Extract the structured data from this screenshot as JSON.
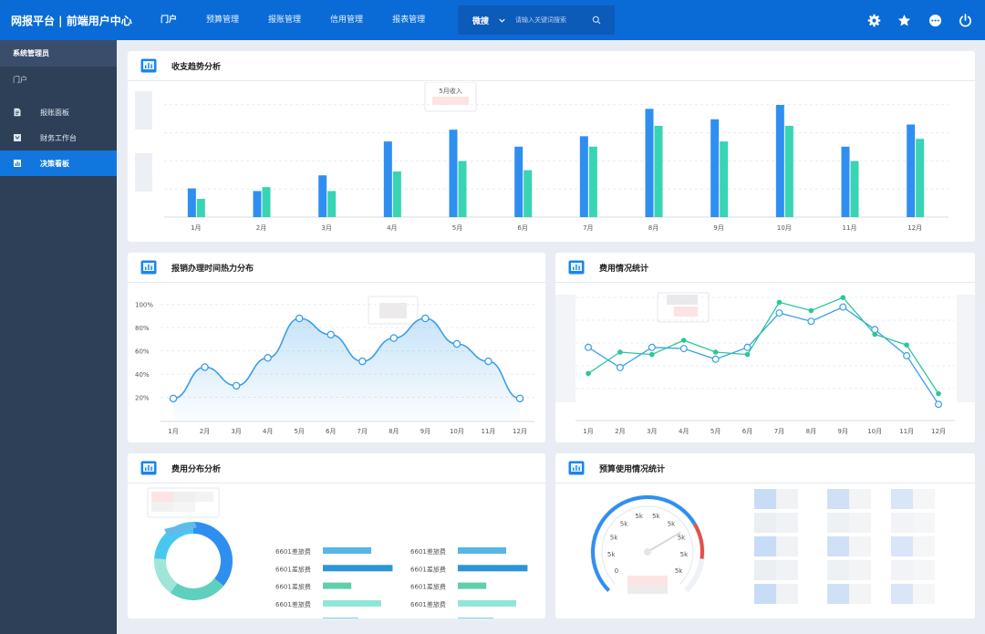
{
  "header": {
    "brand": "网报平台 | 前端用户中心",
    "nav": [
      "门户",
      "预算管理",
      "报账管理",
      "信用管理",
      "报表管理"
    ],
    "search": {
      "type": "微搜",
      "placeholder": "请输入关键词搜索"
    },
    "icons": [
      "gear-icon",
      "star-icon",
      "more-icon",
      "power-icon"
    ]
  },
  "sidebar": {
    "role": "系统管理员",
    "portal": "门户",
    "items": [
      {
        "label": "报账面板",
        "icon": "document-icon",
        "active": false
      },
      {
        "label": "财务工作台",
        "icon": "inbox-icon",
        "active": false
      },
      {
        "label": "决策看板",
        "icon": "chart-icon",
        "active": true
      }
    ]
  },
  "panels": {
    "trend": {
      "title": "收支趋势分析",
      "tooltip": "5月收入"
    },
    "heat": {
      "title": "报销办理时间热力分布"
    },
    "expense": {
      "title": "费用情况统计"
    },
    "dist": {
      "title": "费用分布分析"
    },
    "budget": {
      "title": "预算使用情况统计"
    }
  },
  "colors": {
    "primary": "#0a6bd6",
    "blue": "#2f8ff0",
    "teal": "#38d4b3",
    "line": "#3a9ee8",
    "green": "#2bc79a"
  },
  "chart_data": [
    {
      "type": "bar",
      "categories": [
        "1月",
        "2月",
        "3月",
        "4月",
        "5月",
        "6月",
        "7月",
        "8月",
        "9月",
        "10月",
        "11月",
        "12月"
      ],
      "series": [
        {
          "values": [
            22,
            20,
            32,
            58,
            67,
            54,
            62,
            83,
            75,
            86,
            54,
            71
          ]
        },
        {
          "values": [
            14,
            23,
            20,
            35,
            43,
            36,
            54,
            70,
            58,
            70,
            43,
            60
          ]
        }
      ],
      "ylim": [
        0,
        100
      ]
    },
    {
      "type": "area",
      "categories": [
        "1月",
        "2月",
        "3月",
        "4月",
        "5月",
        "6月",
        "7月",
        "8月",
        "9月",
        "10月",
        "11月",
        "12月"
      ],
      "yticks": [
        "20%",
        "40%",
        "60%",
        "80%",
        "100%"
      ],
      "series": [
        {
          "values": [
            0.19,
            0.46,
            0.3,
            0.54,
            0.88,
            0.74,
            0.51,
            0.71,
            0.88,
            0.66,
            0.51,
            0.19
          ]
        }
      ],
      "ylim": [
        0,
        1.1
      ]
    },
    {
      "type": "line",
      "categories": [
        "1月",
        "2月",
        "3月",
        "4月",
        "5月",
        "6月",
        "7月",
        "8月",
        "9月",
        "10月",
        "11月",
        "12月"
      ],
      "series": [
        {
          "values": [
            54,
            37,
            54,
            53,
            44,
            54,
            83,
            76,
            88,
            69,
            47,
            6
          ]
        },
        {
          "values": [
            32,
            50,
            48,
            60,
            50,
            48,
            92,
            85,
            96,
            65,
            56,
            15
          ]
        }
      ],
      "ylim": [
        0,
        100
      ]
    },
    {
      "type": "pie",
      "values": [
        36,
        24,
        16,
        24
      ],
      "colors": [
        "#2f8ff0",
        "#5ed0bd",
        "#9fe6d9",
        "#49c8ef"
      ]
    },
    {
      "type": "bar",
      "orientation": "horizontal",
      "categories": [
        "6601差旅费",
        "6601差旅费",
        "6601差旅费",
        "6601差旅费",
        "6601差旅费",
        "6601差旅费",
        "6601差旅费",
        "6601差旅费",
        "6601差旅费",
        "6601差旅费"
      ],
      "values": [
        0.68,
        0.98,
        0.4,
        0.82,
        0.5,
        0.68,
        0.98,
        0.4,
        0.82,
        0.5
      ],
      "colors": [
        "#57b6e7",
        "#2b95d8",
        "#5fcfab",
        "#8fe6d6",
        "#4cd2e8",
        "#57b6e7",
        "#2b95d8",
        "#5fcfab",
        "#8fe6d6",
        "#4cd2e8"
      ]
    },
    {
      "type": "gauge",
      "ticks": [
        "0",
        "5k",
        "5k",
        "5k",
        "5k",
        "5k",
        "5k",
        "5k",
        "5k",
        "5k"
      ],
      "value": 0.72
    }
  ]
}
